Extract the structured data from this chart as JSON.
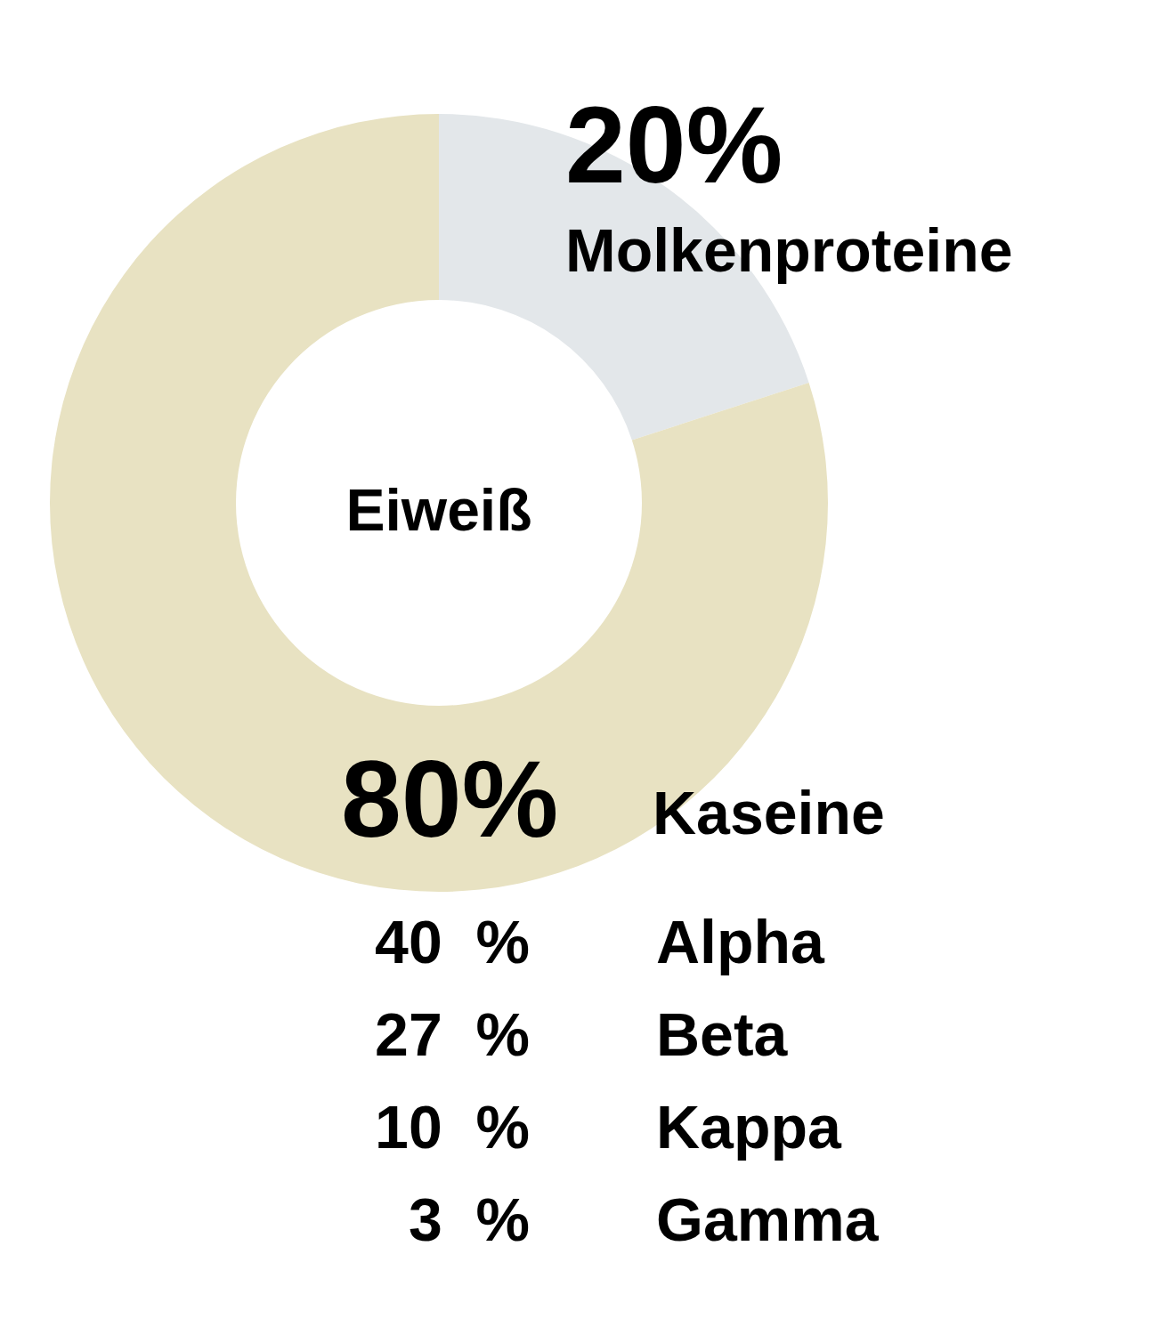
{
  "chart_data": {
    "type": "donut",
    "title": "Eiweiß",
    "categories": [
      "Molkenproteine",
      "Kaseine"
    ],
    "values": [
      20,
      80
    ],
    "value_labels": [
      "20%",
      "80%"
    ],
    "colors": [
      "#e3e7ea",
      "#e8e2c2"
    ],
    "annotations": [
      "40  %",
      "Alpha",
      "27  %",
      "Beta",
      "10  %",
      "Kappa",
      "3  %",
      "Gamma"
    ]
  }
}
